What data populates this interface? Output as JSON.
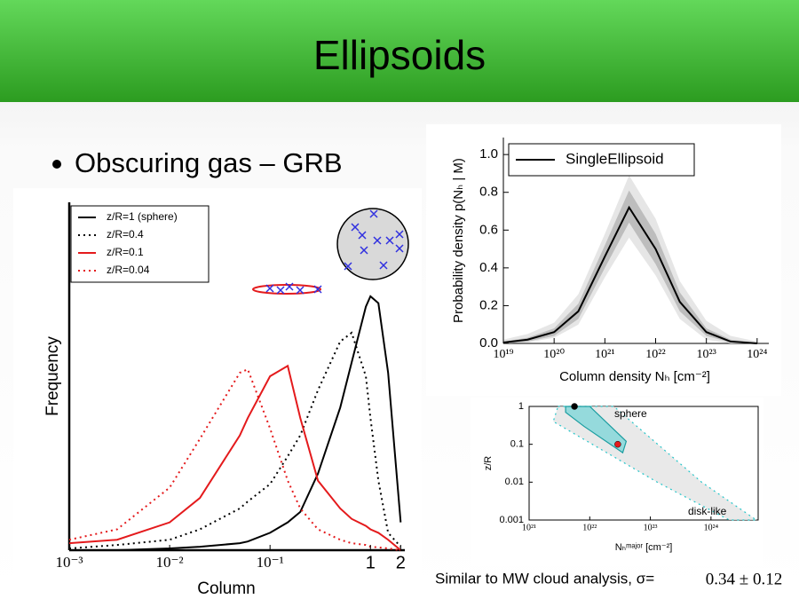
{
  "header": {
    "title": "Ellipsoids"
  },
  "bullets": [
    "Obscuring gas – GRB"
  ],
  "caption": {
    "text": "Similar to MW cloud analysis, σ=",
    "value": "0.34 ± 0.12"
  },
  "chart_data": [
    {
      "type": "line",
      "x_label": "Column",
      "y_label": "Frequency",
      "log_x": true,
      "frame": "axes",
      "legend": "upper left",
      "x": [
        0.001,
        0.003,
        0.01,
        0.02,
        0.05,
        0.06,
        0.1,
        0.15,
        0.2,
        0.3,
        0.5,
        0.65,
        0.9,
        1.0,
        1.2,
        1.5,
        2.0
      ],
      "xlim": [
        0.001,
        2.2
      ],
      "ylim": [
        0,
        1
      ],
      "xticks": [
        {
          "value": 0.001,
          "label": "10⁻³"
        },
        {
          "value": 0.01,
          "label": "10⁻²"
        },
        {
          "value": 0.1,
          "label": "10⁻¹"
        },
        1,
        2
      ],
      "series": [
        {
          "name": "z/R=1 (sphere)",
          "color": "#000000",
          "dash": "solid",
          "values": [
            0,
            0,
            0.005,
            0.01,
            0.02,
            0.025,
            0.05,
            0.08,
            0.11,
            0.22,
            0.41,
            0.54,
            0.7,
            0.73,
            0.71,
            0.51,
            0.08
          ]
        },
        {
          "name": "z/R=0.4",
          "color": "#000000",
          "dash": "dotted",
          "values": [
            0.005,
            0.015,
            0.03,
            0.06,
            0.12,
            0.14,
            0.19,
            0.27,
            0.33,
            0.46,
            0.6,
            0.625,
            0.5,
            0.38,
            0.2,
            0.05,
            0.01
          ]
        },
        {
          "name": "z/R=0.1",
          "color": "#e41a1c",
          "dash": "solid",
          "values": [
            0.02,
            0.03,
            0.08,
            0.15,
            0.33,
            0.38,
            0.5,
            0.53,
            0.38,
            0.2,
            0.12,
            0.09,
            0.07,
            0.06,
            0.05,
            0.03,
            0.0
          ]
        },
        {
          "name": "z/R=0.04",
          "color": "#e41a1c",
          "dash": "dotted",
          "values": [
            0.03,
            0.06,
            0.18,
            0.32,
            0.51,
            0.52,
            0.35,
            0.2,
            0.12,
            0.06,
            0.03,
            0.02,
            0.015,
            0.01,
            0.008,
            0.005,
            0.0
          ]
        }
      ]
    },
    {
      "type": "line",
      "x_label": "Column density Nₕ [cm⁻²]",
      "y_label": "Probability density p(Nₕ | M)",
      "log_x": true,
      "frame": "axes",
      "legend": "upper right",
      "x": [
        1e+19,
        3e+19,
        1e+20,
        3e+20,
        1e+21,
        3e+21,
        1e+22,
        3e+22,
        1e+23,
        3e+23,
        1e+24
      ],
      "xlim": [
        1e+19,
        1.7e+24
      ],
      "ylim": [
        0,
        1.09
      ],
      "xticks": [
        {
          "value": 1e+19,
          "label": "10¹⁹"
        },
        {
          "value": 1e+20,
          "label": "10²⁰"
        },
        {
          "value": 1e+21,
          "label": "10²¹"
        },
        {
          "value": 1e+22,
          "label": "10²²"
        },
        {
          "value": 1e+23,
          "label": "10²³"
        },
        {
          "value": 1e+24,
          "label": "10²⁴"
        }
      ],
      "yticks": [
        {
          "value": 0,
          "label": "0.0"
        },
        0.2,
        0.4,
        0.6,
        0.8,
        {
          "value": 1,
          "label": "1.0"
        }
      ],
      "series": [
        {
          "name": "SingleEllipsoid",
          "color": "#000000",
          "dash": "solid",
          "values": [
            0.005,
            0.02,
            0.06,
            0.17,
            0.46,
            0.72,
            0.5,
            0.22,
            0.06,
            0.01,
            0.0
          ],
          "bands": [
            {
              "color": "#e6e6e6",
              "lower": [
                0,
                0.005,
                0.03,
                0.1,
                0.35,
                0.56,
                0.36,
                0.13,
                0.02,
                0,
                0
              ],
              "upper": [
                0.02,
                0.05,
                0.11,
                0.26,
                0.58,
                0.89,
                0.66,
                0.33,
                0.12,
                0.04,
                0.01
              ]
            },
            {
              "color": "#bdbdbd",
              "lower": [
                0,
                0.01,
                0.04,
                0.13,
                0.4,
                0.64,
                0.42,
                0.17,
                0.04,
                0.005,
                0
              ],
              "upper": [
                0.01,
                0.03,
                0.08,
                0.21,
                0.52,
                0.81,
                0.58,
                0.27,
                0.08,
                0.02,
                0.005
              ]
            }
          ]
        }
      ]
    },
    {
      "type": "contour",
      "x_label": "Nₕᵐᵃʲᵒʳ [cm⁻²]",
      "y_label": "z/R",
      "log_x": true,
      "log_y": true,
      "frame": "box",
      "xlim": [
        1e+21,
        6e+24
      ],
      "ylim": [
        0.001,
        1
      ],
      "xticks": [
        {
          "value": 1e+21,
          "label": "10²¹"
        },
        {
          "value": 1e+22,
          "label": "10²²"
        },
        {
          "value": 1e+23,
          "label": "10²³"
        },
        {
          "value": 1e+24,
          "label": "10²⁴"
        }
      ],
      "yticks": [
        0.001,
        0.01,
        0.1,
        1
      ],
      "contours": [
        {
          "color": "#22c4c8",
          "fill": "#e4e4e4",
          "dash": "dotted",
          "x": [
            3e+21,
            2.5e+22,
            7e+23,
            5.6e+24,
            2e+24,
            1.3e+23,
            2.5e+21
          ],
          "y": [
            1,
            1,
            0.01,
            0.001,
            0.001,
            0.01,
            0.4
          ]
        },
        {
          "color": "#1a9da0",
          "fill": "#7fd6d8",
          "dash": "solid",
          "x": [
            4e+21,
            1e+22,
            4e+22,
            3.5e+22,
            8e+21,
            4e+21
          ],
          "y": [
            1,
            1,
            0.12,
            0.06,
            0.3,
            0.7
          ]
        }
      ],
      "points": [
        {
          "x": 5.6e+21,
          "y": 1,
          "color": "#000000"
        },
        {
          "x": 2.9e+22,
          "y": 0.1,
          "color": "#e41a1c"
        }
      ],
      "annotations": [
        "sphere",
        "disk-like"
      ]
    }
  ]
}
